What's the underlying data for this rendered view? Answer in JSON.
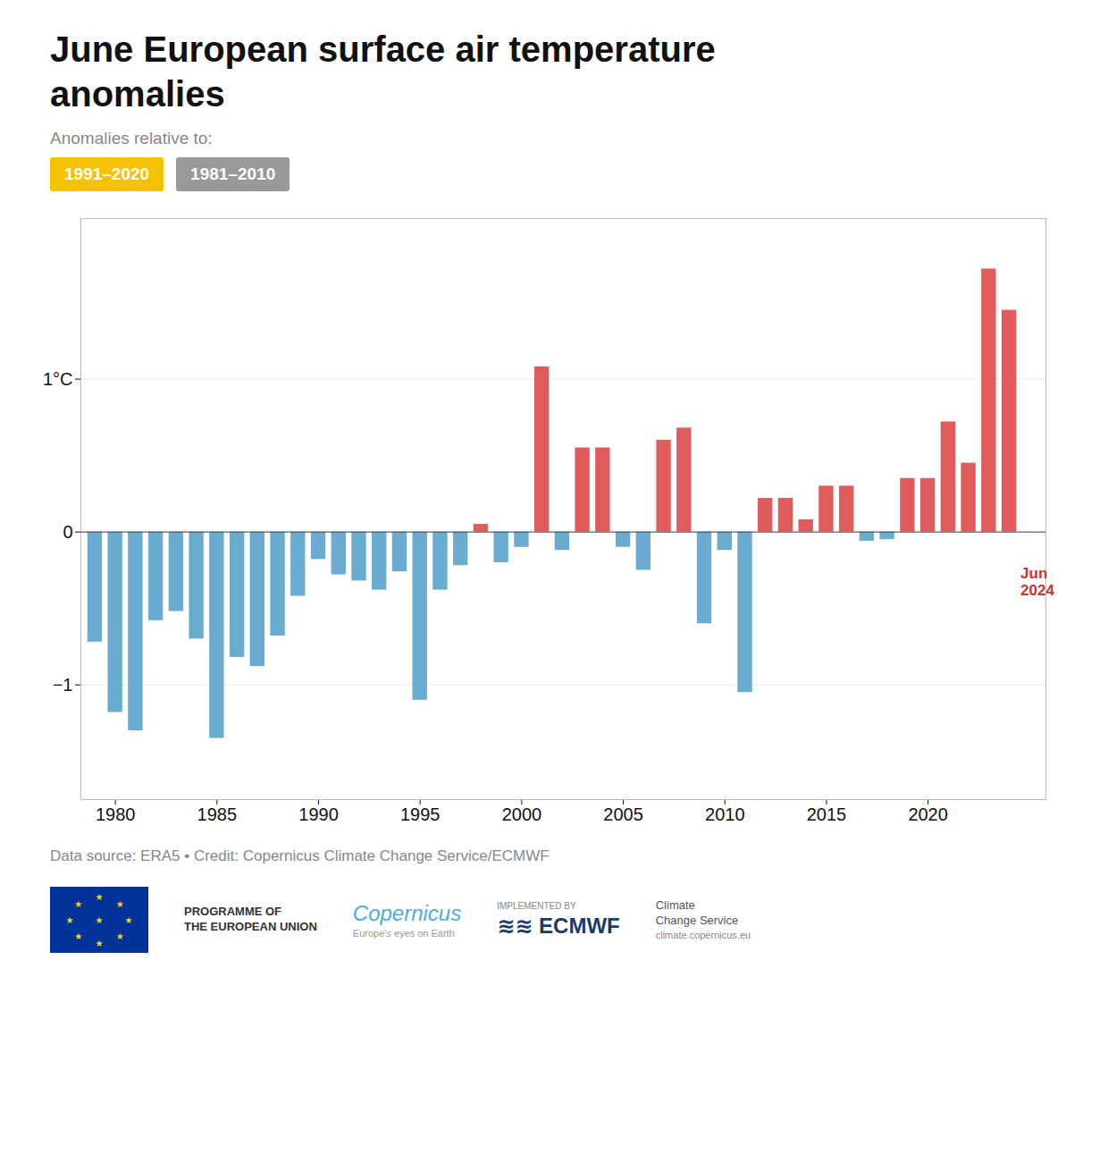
{
  "chart_data": {
    "type": "bar",
    "title": "June European surface air temperature\nanomalies",
    "subtitle": "Anomalies relative to:",
    "badges": [
      {
        "text": "1991–2020",
        "color": "#F5C200"
      },
      {
        "text": "1981–2010",
        "color": "#999999"
      }
    ],
    "x": [
      1979,
      1980,
      1981,
      1982,
      1983,
      1984,
      1985,
      1986,
      1987,
      1988,
      1989,
      1990,
      1991,
      1992,
      1993,
      1994,
      1995,
      1996,
      1997,
      1998,
      1999,
      2000,
      2001,
      2002,
      2003,
      2004,
      2005,
      2006,
      2007,
      2008,
      2009,
      2010,
      2011,
      2012,
      2013,
      2014,
      2015,
      2016,
      2017,
      2018,
      2019,
      2020,
      2021,
      2022,
      2023,
      2024
    ],
    "values": [
      -0.72,
      -1.18,
      -1.3,
      -0.58,
      -0.52,
      -0.7,
      -1.35,
      -0.82,
      -0.88,
      -0.68,
      -0.42,
      -0.18,
      -0.28,
      -0.32,
      -0.38,
      -0.26,
      -1.1,
      -0.38,
      -0.22,
      0.05,
      -0.2,
      -0.1,
      1.08,
      -0.12,
      0.55,
      0.55,
      -0.1,
      -0.25,
      0.6,
      0.68,
      -0.6,
      -0.12,
      -1.05,
      0.22,
      0.22,
      0.08,
      0.3,
      0.3,
      -0.06,
      -0.05,
      0.35,
      0.35,
      0.72,
      0.45,
      1.72,
      1.45
    ],
    "colors": [
      "#6AACD0",
      "#6AACD0",
      "#6AACD0",
      "#6AACD0",
      "#6AACD0",
      "#6AACD0",
      "#6AACD0",
      "#6AACD0",
      "#6AACD0",
      "#6AACD0",
      "#6AACD0",
      "#6AACD0",
      "#6AACD0",
      "#6AACD0",
      "#6AACD0",
      "#6AACD0",
      "#6AACD0",
      "#6AACD0",
      "#6AACD0",
      "#E05C5C",
      "#6AACD0",
      "#6AACD0",
      "#E05C5C",
      "#6AACD0",
      "#E05C5C",
      "#E05C5C",
      "#6AACD0",
      "#6AACD0",
      "#E05C5C",
      "#E05C5C",
      "#6AACD0",
      "#6AACD0",
      "#6AACD0",
      "#E05C5C",
      "#E05C5C",
      "#E05C5C",
      "#E05C5C",
      "#E05C5C",
      "#6AACD0",
      "#6AACD0",
      "#E05C5C",
      "#E05C5C",
      "#E05C5C",
      "#E05C5C",
      "#E05C5C",
      "#E05C5C"
    ],
    "xlim": [
      1978.3,
      2025.8
    ],
    "xticks": [
      1980,
      1985,
      1990,
      1995,
      2000,
      2005,
      2010,
      2015,
      2020
    ],
    "ylim": [
      -1.75,
      2.05
    ],
    "yticks": [
      {
        "value": -1,
        "label": "−1"
      },
      0,
      {
        "value": 1,
        "label": "1°C"
      }
    ],
    "grid": true,
    "annotations": [
      {
        "text": "Jun\n2024",
        "x": 2024.55,
        "y": -0.22,
        "color": "#C0392B"
      }
    ],
    "caption": "Data source: ERA5 • Credit: Copernicus Climate Change Service/ECMWF",
    "flag_stars": [
      "★",
      "★",
      "★",
      "★",
      "★",
      "★",
      "★",
      "★",
      "★"
    ],
    "footer": [
      [
        "PROGRAMME OF",
        "THE EUROPEAN UNION"
      ],
      [
        "Copernicus",
        "Europe's eyes on Earth"
      ],
      [
        "IMPLEMENTED BY",
        "≋≋  ECMWF"
      ],
      [
        "Climate",
        "Change Service",
        "climate.copernicus.eu"
      ]
    ]
  }
}
